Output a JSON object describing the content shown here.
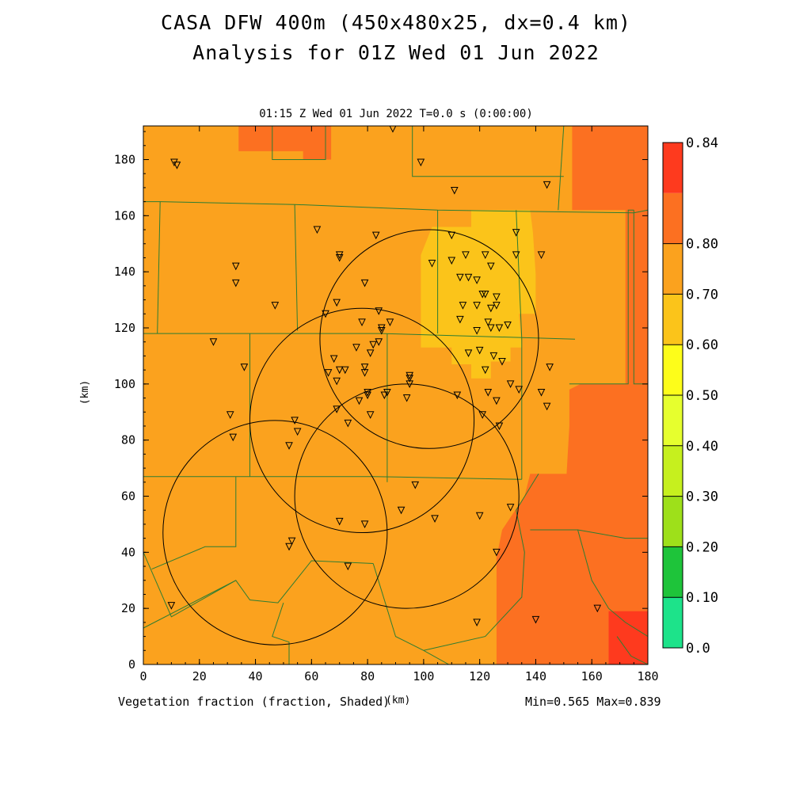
{
  "title_line1": "CASA DFW 400m (450x480x25, dx=0.4 km)",
  "title_line2": "Analysis for 01Z Wed 01 Jun 2022",
  "plot_header": "01:15 Z Wed 01 Jun 2022    T=0.0 s (0:00:00)",
  "x_unit": "(km)",
  "y_unit": "(km)",
  "field_label": "Vegetation fraction (fraction, Shaded)",
  "min_max": "Min=0.565 Max=0.839",
  "colors": {
    "background": "#ffffff",
    "county_lines": "#2e7d32",
    "circles": "#000000"
  },
  "chart_data": {
    "type": "heatmap",
    "xlim": [
      0,
      180
    ],
    "ylim": [
      0,
      192
    ],
    "x_ticks": [
      "0",
      "20",
      "40",
      "60",
      "80",
      "100",
      "120",
      "140",
      "160",
      "180"
    ],
    "y_ticks": [
      "0",
      "20",
      "40",
      "60",
      "80",
      "100",
      "120",
      "140",
      "160",
      "180"
    ],
    "colorbar": {
      "levels": [
        "0.0",
        "0.10",
        "0.20",
        "0.30",
        "0.40",
        "0.50",
        "0.60",
        "0.70",
        "0.80",
        "0.84"
      ],
      "colors": [
        "#1de38a",
        "#1ec43a",
        "#9ee01a",
        "#c6f01e",
        "#e6ff2e",
        "#fdfd1a",
        "#fbc41a",
        "#fba21e",
        "#fc7021",
        "#fe3a1e"
      ]
    },
    "regions": [
      {
        "value": 0.65,
        "color": "#fba21e",
        "polygon": [
          [
            0,
            0
          ],
          [
            180,
            0
          ],
          [
            180,
            192
          ],
          [
            0,
            192
          ]
        ]
      },
      {
        "value": 0.72,
        "color": "#fc7021",
        "polygon": [
          [
            34,
            183
          ],
          [
            57,
            183
          ],
          [
            57,
            180
          ],
          [
            67,
            180
          ],
          [
            67,
            192
          ],
          [
            34,
            192
          ]
        ]
      },
      {
        "value": 0.72,
        "color": "#fc7021",
        "polygon": [
          [
            153,
            192
          ],
          [
            180,
            192
          ],
          [
            180,
            162
          ],
          [
            153,
            162
          ]
        ]
      },
      {
        "value": 0.72,
        "color": "#fc7021",
        "polygon": [
          [
            172,
            162
          ],
          [
            180,
            162
          ],
          [
            180,
            100
          ],
          [
            172,
            100
          ]
        ]
      },
      {
        "value": 0.72,
        "color": "#fc7021",
        "polygon": [
          [
            126,
            0
          ],
          [
            180,
            0
          ],
          [
            180,
            100
          ],
          [
            156,
            100
          ],
          [
            152,
            98
          ],
          [
            152,
            85
          ],
          [
            151,
            68
          ],
          [
            138,
            68
          ],
          [
            136,
            60
          ],
          [
            128,
            48
          ],
          [
            126,
            38
          ]
        ]
      },
      {
        "value": 0.8,
        "color": "#fe3a1e",
        "polygon": [
          [
            166,
            0
          ],
          [
            180,
            0
          ],
          [
            180,
            19
          ],
          [
            166,
            19
          ]
        ]
      },
      {
        "value": 0.57,
        "color": "#fbc41a",
        "polygon": [
          [
            99,
            113
          ],
          [
            110,
            113
          ],
          [
            110,
            107
          ],
          [
            117,
            107
          ],
          [
            117,
            102
          ],
          [
            124,
            102
          ],
          [
            124,
            108
          ],
          [
            131,
            108
          ],
          [
            131,
            113
          ],
          [
            135,
            113
          ],
          [
            134,
            125
          ],
          [
            140,
            125
          ],
          [
            140,
            139
          ],
          [
            139,
            154
          ],
          [
            138,
            162
          ],
          [
            117,
            162
          ],
          [
            117,
            156
          ],
          [
            103,
            156
          ],
          [
            99,
            146
          ]
        ]
      }
    ],
    "county_lines": [
      [
        [
          0,
          118
        ],
        [
          85,
          118
        ],
        [
          154,
          116
        ]
      ],
      [
        [
          0,
          67
        ],
        [
          33,
          67
        ],
        [
          82,
          67
        ],
        [
          135,
          66
        ]
      ],
      [
        [
          0,
          165
        ],
        [
          6,
          165
        ],
        [
          54,
          164
        ],
        [
          105,
          162
        ],
        [
          175,
          161
        ],
        [
          180,
          162
        ]
      ],
      [
        [
          6,
          165
        ],
        [
          5,
          118
        ]
      ],
      [
        [
          54,
          164
        ],
        [
          55,
          119
        ]
      ],
      [
        [
          105,
          162
        ],
        [
          105,
          118
        ]
      ],
      [
        [
          133,
          162
        ],
        [
          135,
          116
        ],
        [
          135,
          66
        ]
      ],
      [
        [
          150,
          192
        ],
        [
          148,
          162
        ]
      ],
      [
        [
          46,
          192
        ],
        [
          46,
          180
        ],
        [
          65,
          180
        ],
        [
          65,
          192
        ]
      ],
      [
        [
          96,
          192
        ],
        [
          96,
          174
        ],
        [
          150,
          174
        ]
      ],
      [
        [
          38,
          118
        ],
        [
          38,
          67
        ]
      ],
      [
        [
          87,
          118
        ],
        [
          87,
          65
        ]
      ],
      [
        [
          33,
          67
        ],
        [
          33,
          42
        ],
        [
          22,
          42
        ],
        [
          3,
          34
        ]
      ],
      [
        [
          0,
          40
        ],
        [
          10,
          17
        ],
        [
          33,
          30
        ],
        [
          38,
          23
        ],
        [
          48,
          22
        ],
        [
          60,
          37
        ],
        [
          82,
          36
        ]
      ],
      [
        [
          0,
          13
        ],
        [
          33,
          30
        ]
      ],
      [
        [
          82,
          36
        ],
        [
          90,
          10
        ],
        [
          100,
          5
        ],
        [
          109,
          0
        ]
      ],
      [
        [
          100,
          5
        ],
        [
          122,
          10
        ],
        [
          135,
          24
        ],
        [
          136,
          40
        ],
        [
          133,
          55
        ],
        [
          141,
          68
        ]
      ],
      [
        [
          138,
          48
        ],
        [
          155,
          48
        ],
        [
          160,
          30
        ],
        [
          166,
          20
        ],
        [
          172,
          15
        ],
        [
          180,
          10
        ]
      ],
      [
        [
          155,
          48
        ],
        [
          172,
          45
        ],
        [
          180,
          45
        ]
      ],
      [
        [
          169,
          10
        ],
        [
          174,
          3
        ],
        [
          180,
          0
        ]
      ],
      [
        [
          175,
          162
        ],
        [
          175,
          100
        ],
        [
          180,
          100
        ]
      ],
      [
        [
          175,
          162
        ],
        [
          173,
          162
        ],
        [
          173,
          100
        ],
        [
          152,
          100
        ]
      ],
      [
        [
          50,
          22
        ],
        [
          46,
          10
        ],
        [
          52,
          8
        ],
        [
          52,
          0
        ]
      ]
    ],
    "radar_circles": [
      {
        "cx": 47,
        "cy": 47,
        "r": 40
      },
      {
        "cx": 78,
        "cy": 87,
        "r": 40
      },
      {
        "cx": 102,
        "cy": 116,
        "r": 39
      },
      {
        "cx": 94,
        "cy": 60,
        "r": 40
      }
    ],
    "stations": [
      [
        11,
        179
      ],
      [
        12,
        178
      ],
      [
        33,
        142
      ],
      [
        33,
        136
      ],
      [
        47,
        128
      ],
      [
        25,
        115
      ],
      [
        36,
        106
      ],
      [
        31,
        89
      ],
      [
        32,
        81
      ],
      [
        62,
        155
      ],
      [
        70,
        146
      ],
      [
        70,
        145
      ],
      [
        79,
        136
      ],
      [
        78,
        122
      ],
      [
        82,
        114
      ],
      [
        76,
        113
      ],
      [
        69,
        129
      ],
      [
        65,
        125
      ],
      [
        84,
        126
      ],
      [
        85,
        119
      ],
      [
        85,
        120
      ],
      [
        84,
        115
      ],
      [
        88,
        122
      ],
      [
        66,
        104
      ],
      [
        68,
        109
      ],
      [
        69,
        101
      ],
      [
        70,
        105
      ],
      [
        72,
        105
      ],
      [
        79,
        106
      ],
      [
        80,
        97
      ],
      [
        81,
        111
      ],
      [
        80,
        96
      ],
      [
        81,
        89
      ],
      [
        86,
        96
      ],
      [
        87,
        97
      ],
      [
        79,
        104
      ],
      [
        77,
        94
      ],
      [
        73,
        86
      ],
      [
        69,
        91
      ],
      [
        54,
        87
      ],
      [
        55,
        83
      ],
      [
        52,
        78
      ],
      [
        83,
        153
      ],
      [
        89,
        191
      ],
      [
        99,
        179
      ],
      [
        111,
        169
      ],
      [
        110,
        153
      ],
      [
        115,
        146
      ],
      [
        122,
        146
      ],
      [
        124,
        142
      ],
      [
        133,
        154
      ],
      [
        144,
        171
      ],
      [
        142,
        146
      ],
      [
        110,
        144
      ],
      [
        113,
        138
      ],
      [
        116,
        138
      ],
      [
        114,
        128
      ],
      [
        113,
        123
      ],
      [
        119,
        137
      ],
      [
        119,
        128
      ],
      [
        121,
        132
      ],
      [
        122,
        132
      ],
      [
        124,
        127
      ],
      [
        124,
        120
      ],
      [
        126,
        131
      ],
      [
        126,
        128
      ],
      [
        119,
        119
      ],
      [
        123,
        122
      ],
      [
        127,
        120
      ],
      [
        130,
        121
      ],
      [
        133,
        146
      ],
      [
        125,
        110
      ],
      [
        120,
        112
      ],
      [
        116,
        111
      ],
      [
        122,
        105
      ],
      [
        128,
        108
      ],
      [
        123,
        97
      ],
      [
        134,
        98
      ],
      [
        131,
        100
      ],
      [
        126,
        94
      ],
      [
        121,
        89
      ],
      [
        127,
        85
      ],
      [
        142,
        97
      ],
      [
        144,
        92
      ],
      [
        145,
        106
      ],
      [
        112,
        96
      ],
      [
        95,
        103
      ],
      [
        95,
        100
      ],
      [
        94,
        95
      ],
      [
        95,
        102
      ],
      [
        103,
        143
      ],
      [
        97,
        64
      ],
      [
        92,
        55
      ],
      [
        104,
        52
      ],
      [
        79,
        50
      ],
      [
        70,
        51
      ],
      [
        53,
        44
      ],
      [
        52,
        42
      ],
      [
        73,
        35
      ],
      [
        120,
        53
      ],
      [
        131,
        56
      ],
      [
        126,
        40
      ],
      [
        119,
        15
      ],
      [
        140,
        16
      ],
      [
        162,
        20
      ],
      [
        10,
        21
      ]
    ]
  }
}
